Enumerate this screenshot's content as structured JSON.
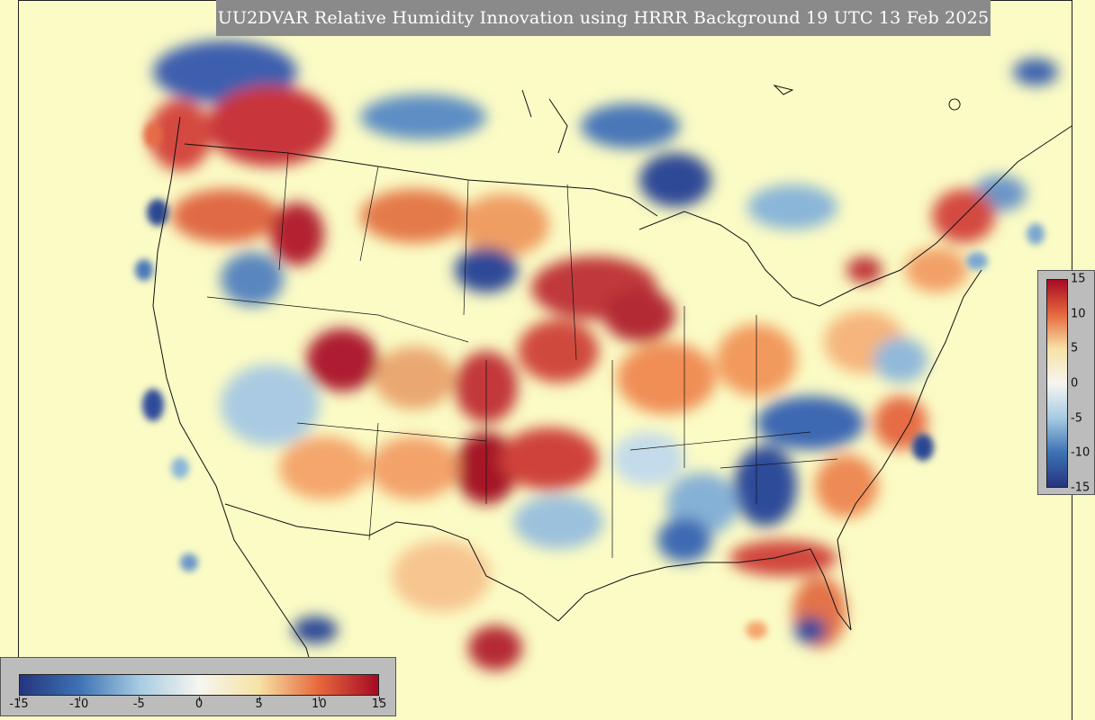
{
  "title": "UU2DVAR Relative Humidity Innovation using HRRR Background 19 UTC 13 Feb 2025",
  "colorbar": {
    "min": -15,
    "max": 15,
    "horizontal_ticks": [
      "-15",
      "-10",
      "-5",
      "0",
      "5",
      "10",
      "15"
    ],
    "vertical_ticks": [
      "15",
      "10",
      "5",
      "0",
      "-5",
      "-10",
      "-15"
    ],
    "colors": {
      "strong_negative": "#24357f",
      "negative": "#3e72b4",
      "weak_negative": "#a6cbe2",
      "neutral": "#f6f6f0",
      "weak_positive": "#f7e2a6",
      "positive": "#e7683d",
      "strong_positive": "#a50a23"
    }
  }
}
